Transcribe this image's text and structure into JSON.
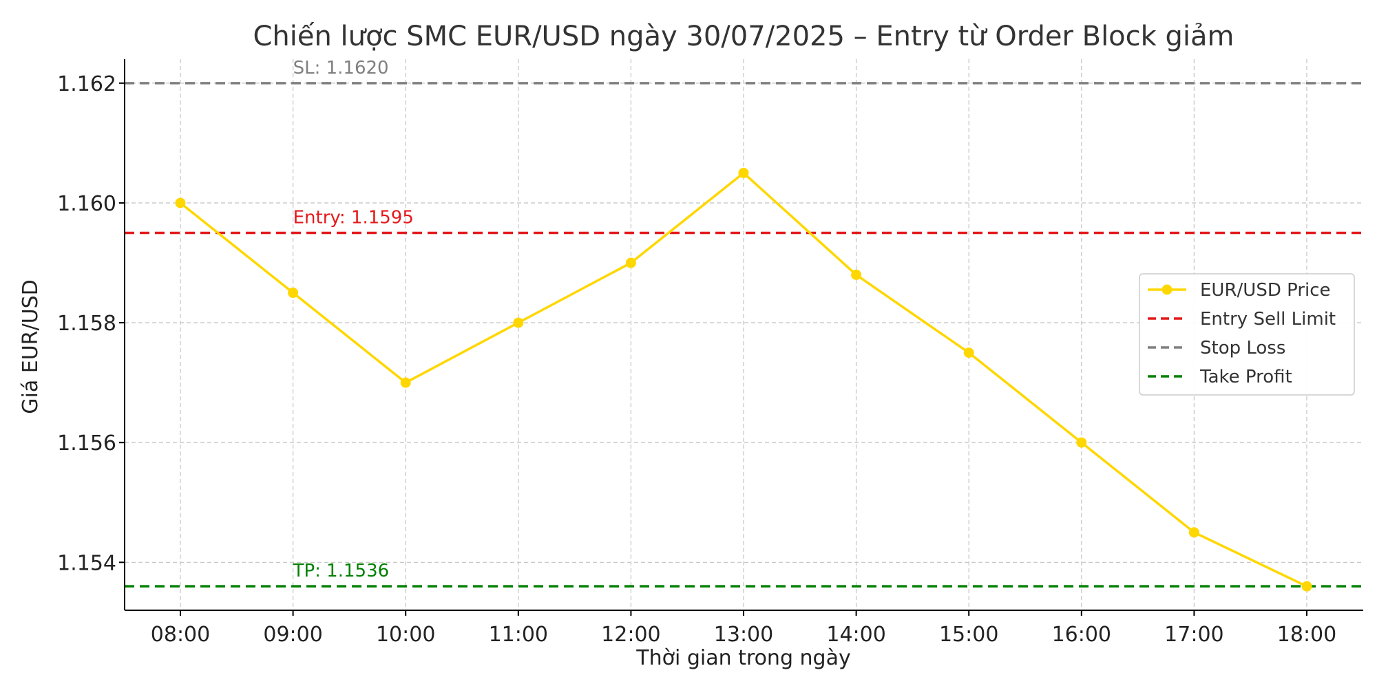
{
  "chart_data": {
    "type": "line",
    "title": "Chiến lược SMC EUR/USD ngày 30/07/2025 – Entry từ Order Block giảm",
    "xlabel": "Thời gian trong ngày",
    "ylabel": "Giá EUR/USD",
    "categories": [
      "08:00",
      "09:00",
      "10:00",
      "11:00",
      "12:00",
      "13:00",
      "14:00",
      "15:00",
      "16:00",
      "17:00",
      "18:00"
    ],
    "series": [
      {
        "name": "EUR/USD Price",
        "color": "#FFD700",
        "values": [
          1.16,
          1.1585,
          1.157,
          1.158,
          1.159,
          1.1605,
          1.1588,
          1.1575,
          1.156,
          1.1545,
          1.1536
        ]
      }
    ],
    "hlines": [
      {
        "name": "Entry Sell Limit",
        "value": 1.1595,
        "color": "#e41a1c",
        "label": "Entry: 1.1595"
      },
      {
        "name": "Stop Loss",
        "value": 1.162,
        "color": "#808080",
        "label": "SL: 1.1620"
      },
      {
        "name": "Take Profit",
        "value": 1.1536,
        "color": "#008000",
        "label": "TP: 1.1536"
      }
    ],
    "yticks": [
      "1.154",
      "1.156",
      "1.158",
      "1.160",
      "1.162"
    ],
    "ylim": [
      1.1532,
      1.1624
    ],
    "grid": true,
    "legend_position": "center-right"
  }
}
